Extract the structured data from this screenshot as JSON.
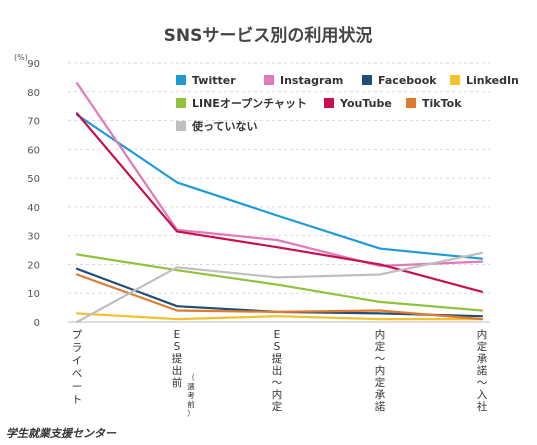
{
  "chart_data": {
    "type": "line",
    "title": "SNSサービス別の利用状況",
    "yunit": "(%)",
    "ylim": [
      0,
      90
    ],
    "yticks": [
      "0",
      "10",
      "20",
      "30",
      "40",
      "50",
      "60",
      "70",
      "80",
      "90"
    ],
    "grid": true,
    "legend_position": "top-right",
    "categories": [
      "プライベート",
      "ES提出前",
      "ES提出～内定",
      "内定～内定承諾",
      "内定承諾～入社"
    ],
    "category_note": "（選考前）",
    "series": [
      {
        "name": "Twitter",
        "color": "#1e9bd7",
        "values": [
          72,
          48.5,
          37,
          25.5,
          22
        ]
      },
      {
        "name": "Instagram",
        "color": "#e07aba",
        "values": [
          83,
          32,
          28.5,
          19.5,
          21
        ]
      },
      {
        "name": "Facebook",
        "color": "#1f4e79",
        "values": [
          18.5,
          5.5,
          3.5,
          3,
          2
        ]
      },
      {
        "name": "LinkedIn",
        "color": "#f2c12e",
        "values": [
          3,
          1,
          2,
          1,
          1
        ]
      },
      {
        "name": "LINEオープンチャット",
        "color": "#92c13c",
        "values": [
          23.5,
          18,
          13,
          7,
          4
        ]
      },
      {
        "name": "YouTube",
        "color": "#c8104f",
        "values": [
          72.5,
          31.5,
          26,
          20,
          10.5
        ]
      },
      {
        "name": "TikTok",
        "color": "#e07a2e",
        "values": [
          16.5,
          4,
          3.5,
          4,
          1
        ]
      },
      {
        "name": "使っていない",
        "color": "#bfbfbf",
        "values": [
          0,
          19,
          15.5,
          16.5,
          24
        ]
      }
    ]
  },
  "credit": "学生就業支援センター"
}
